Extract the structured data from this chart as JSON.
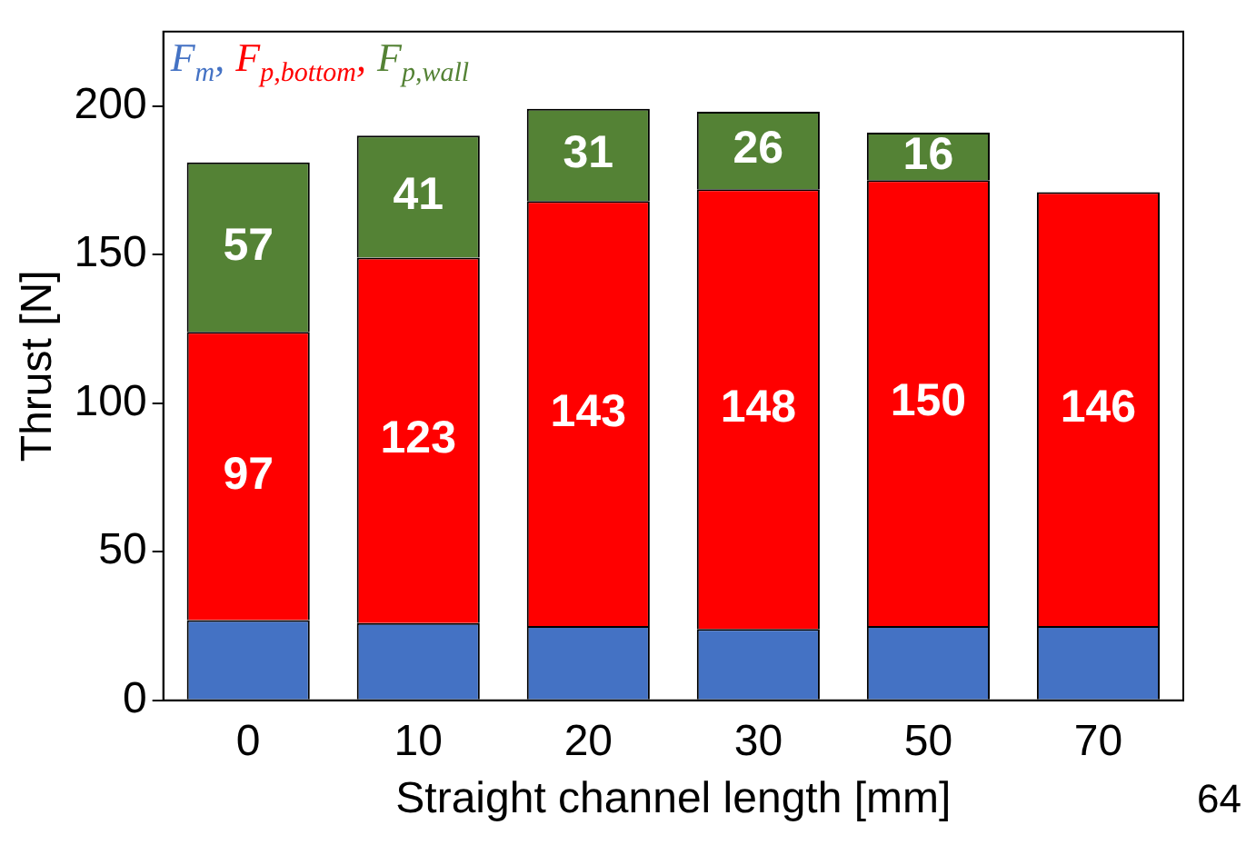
{
  "chart_data": {
    "type": "bar",
    "stacked": true,
    "xlabel": "Straight channel length [mm]",
    "ylabel": "Thrust [N]",
    "categories": [
      "0",
      "10",
      "20",
      "30",
      "50",
      "70"
    ],
    "series": [
      {
        "name": "F$_{m}$,",
        "color": "#4472c4",
        "values": [
          27,
          26,
          25,
          24,
          25,
          25
        ]
      },
      {
        "name": "F$_{p,bottom}$,",
        "color": "#ff0000",
        "values": [
          97,
          123,
          143,
          148,
          150,
          146
        ],
        "value_labels": [
          "97",
          "123",
          "143",
          "148",
          "150",
          "146"
        ]
      },
      {
        "name": "F$_{p,wall}$",
        "color": "#548235",
        "values": [
          57,
          41,
          31,
          26,
          16,
          null
        ],
        "value_labels": [
          "57",
          "41",
          "31",
          "26",
          "16",
          null
        ]
      }
    ],
    "ylim": [
      0,
      225
    ],
    "yticks": [
      0,
      50,
      100,
      150,
      200
    ],
    "grid": false,
    "legend": "top left",
    "annotations": [
      "64"
    ]
  }
}
